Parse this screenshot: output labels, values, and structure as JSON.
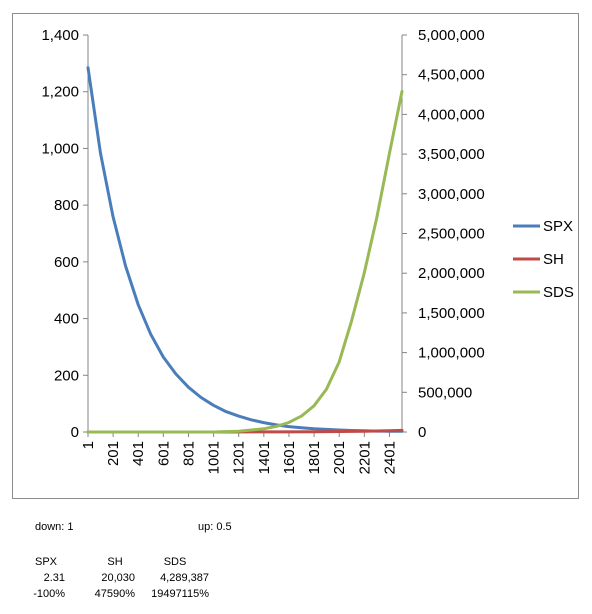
{
  "chart_data": {
    "type": "line",
    "title": "",
    "xlabel": "",
    "ylabel": "",
    "ylabel_right": "",
    "x_ticks": [
      "1",
      "201",
      "401",
      "601",
      "801",
      "1001",
      "1201",
      "1401",
      "1601",
      "1801",
      "2001",
      "2201",
      "2401"
    ],
    "xlim": [
      1,
      2501
    ],
    "ylim_left": [
      0,
      1400
    ],
    "ylim_right": [
      0,
      5000000
    ],
    "y_ticks_left": [
      "0",
      "200",
      "400",
      "600",
      "800",
      "1,000",
      "1,200",
      "1,400"
    ],
    "y_ticks_right": [
      "0",
      "500,000",
      "1,000,000",
      "1,500,000",
      "2,000,000",
      "2,500,000",
      "3,000,000",
      "3,500,000",
      "4,000,000",
      "4,500,000",
      "5,000,000"
    ],
    "grid": false,
    "legend_position": "right",
    "series": [
      {
        "name": "SPX",
        "color": "#4a7ebb",
        "axis": "left",
        "x": [
          1,
          100,
          200,
          300,
          400,
          500,
          600,
          700,
          800,
          900,
          1000,
          1100,
          1200,
          1300,
          1400,
          1500,
          1600,
          1700,
          1800,
          1900,
          2000,
          2100,
          2200,
          2300,
          2400,
          2501
        ],
        "y": [
          1285,
          985,
          760,
          585,
          450,
          345,
          265,
          205,
          158,
          122,
          94,
          72,
          56,
          43,
          33,
          25,
          19,
          15,
          11.5,
          9,
          7,
          5.3,
          4.1,
          3.2,
          2.8,
          2.31
        ]
      },
      {
        "name": "SH",
        "color": "#be4b48",
        "axis": "right",
        "x": [
          1,
          1000,
          1500,
          1800,
          2000,
          2200,
          2400,
          2501
        ],
        "y": [
          0,
          0,
          1000,
          3000,
          6000,
          10000,
          16000,
          20030
        ]
      },
      {
        "name": "SDS",
        "color": "#98b954",
        "axis": "right",
        "x": [
          1,
          1000,
          1200,
          1400,
          1500,
          1600,
          1700,
          1800,
          1900,
          2000,
          2100,
          2200,
          2300,
          2400,
          2501
        ],
        "y": [
          0,
          0,
          10000,
          40000,
          70000,
          120000,
          200000,
          330000,
          540000,
          880000,
          1400000,
          2000000,
          2700000,
          3500000,
          4289387
        ]
      }
    ]
  },
  "params": {
    "down_label": "down:",
    "down_value": "1",
    "up_label": "up:",
    "up_value": "0.5"
  },
  "summary": {
    "headers": [
      "SPX",
      "SH",
      "SDS"
    ],
    "final_values": [
      "2.31",
      "20,030",
      "4,289,387"
    ],
    "changes": [
      "-100%",
      "47590%",
      "19497115%"
    ]
  }
}
